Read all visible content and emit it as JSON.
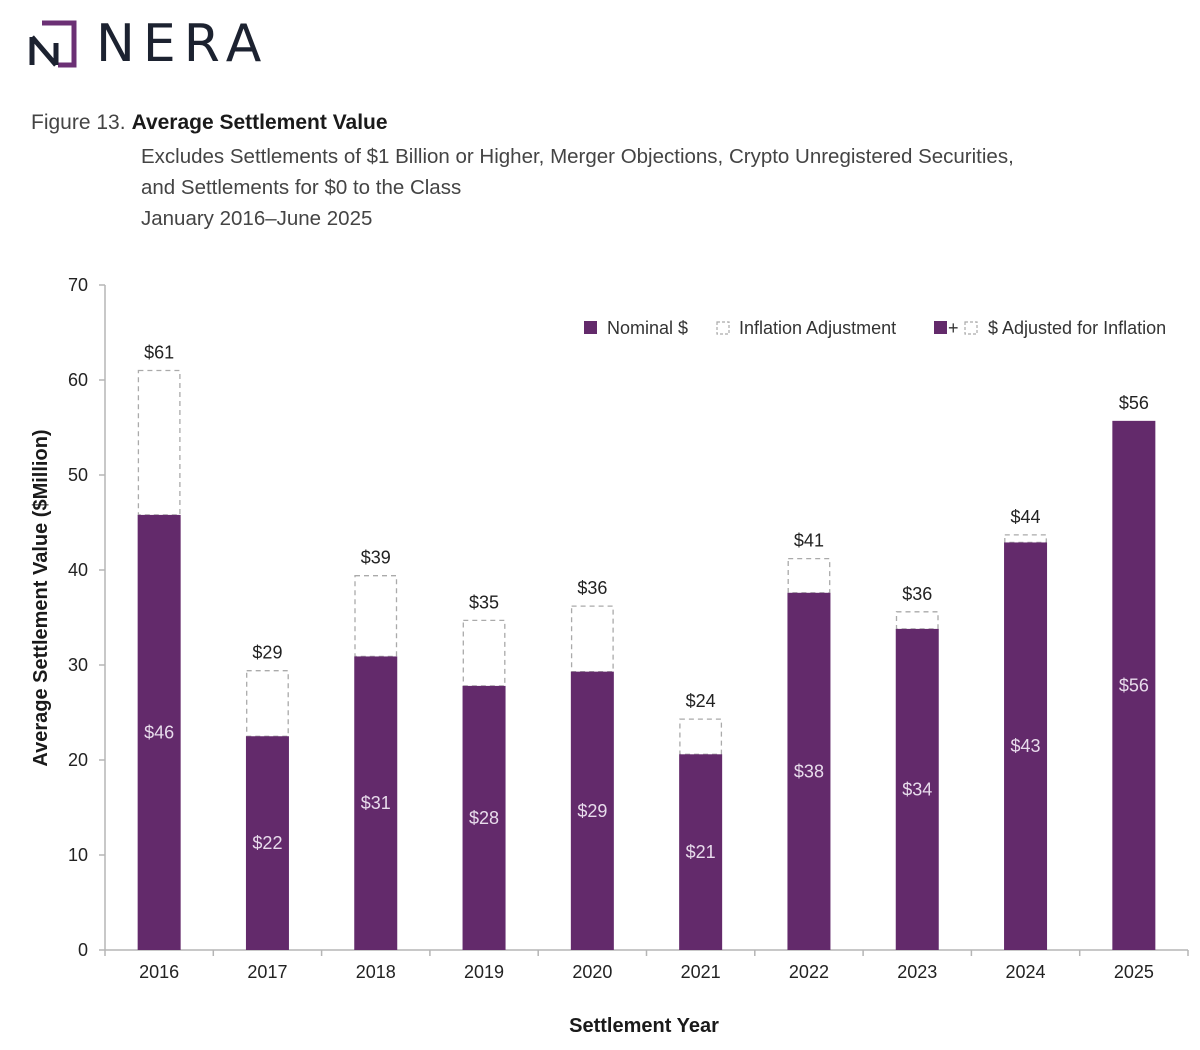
{
  "brand": {
    "name": "NERA",
    "accent_color": "#6b3074",
    "text_color": "#1c2230"
  },
  "figure": {
    "number": "Figure 13.",
    "title": "Average Settlement Value",
    "subtitle_lines": [
      "Excludes Settlements of $1 Billion or Higher, Merger Objections, Crypto Unregistered Securities,",
      "and Settlements for $0 to the Class",
      "January 2016–June 2025"
    ]
  },
  "chart_data": {
    "type": "bar",
    "stacked": true,
    "title": "Average Settlement Value",
    "xlabel": "Settlement Year",
    "ylabel": "Average Settlement Value ($Million)",
    "ylim": [
      0,
      70
    ],
    "yticks": [
      0,
      10,
      20,
      30,
      40,
      50,
      60,
      70
    ],
    "grid": false,
    "legend_position": "top-right",
    "categories": [
      "2016",
      "2017",
      "2018",
      "2019",
      "2020",
      "2021",
      "2022",
      "2023",
      "2024",
      "2025"
    ],
    "series": [
      {
        "name": "Nominal $",
        "color": "#632a6b",
        "style": "solid",
        "values": [
          45.8,
          22.5,
          30.9,
          27.8,
          29.3,
          20.6,
          37.6,
          33.8,
          42.9,
          55.7
        ],
        "labels": [
          "$46",
          "$22",
          "$31",
          "$28",
          "$29",
          "$21",
          "$38",
          "$34",
          "$43",
          "$56"
        ]
      },
      {
        "name": "Inflation Adjustment",
        "color": "#aaaaaa",
        "style": "dashed-outline",
        "values": [
          15.2,
          6.9,
          8.5,
          6.9,
          6.9,
          3.7,
          3.6,
          1.8,
          0.8,
          0.0
        ]
      }
    ],
    "totals": {
      "name": "$ Adjusted for Inflation",
      "values": [
        61.0,
        29.4,
        39.4,
        34.7,
        36.2,
        24.3,
        41.2,
        35.6,
        43.7,
        55.7
      ],
      "labels": [
        "$61",
        "$29",
        "$39",
        "$35",
        "$36",
        "$24",
        "$41",
        "$36",
        "$44",
        "$56"
      ]
    },
    "legend": [
      {
        "label": "Nominal $",
        "swatch": "solid"
      },
      {
        "label": "Inflation Adjustment",
        "swatch": "dashed"
      },
      {
        "label": "$ Adjusted for Inflation",
        "swatch": "solid+dashed",
        "plus": "+"
      }
    ]
  }
}
